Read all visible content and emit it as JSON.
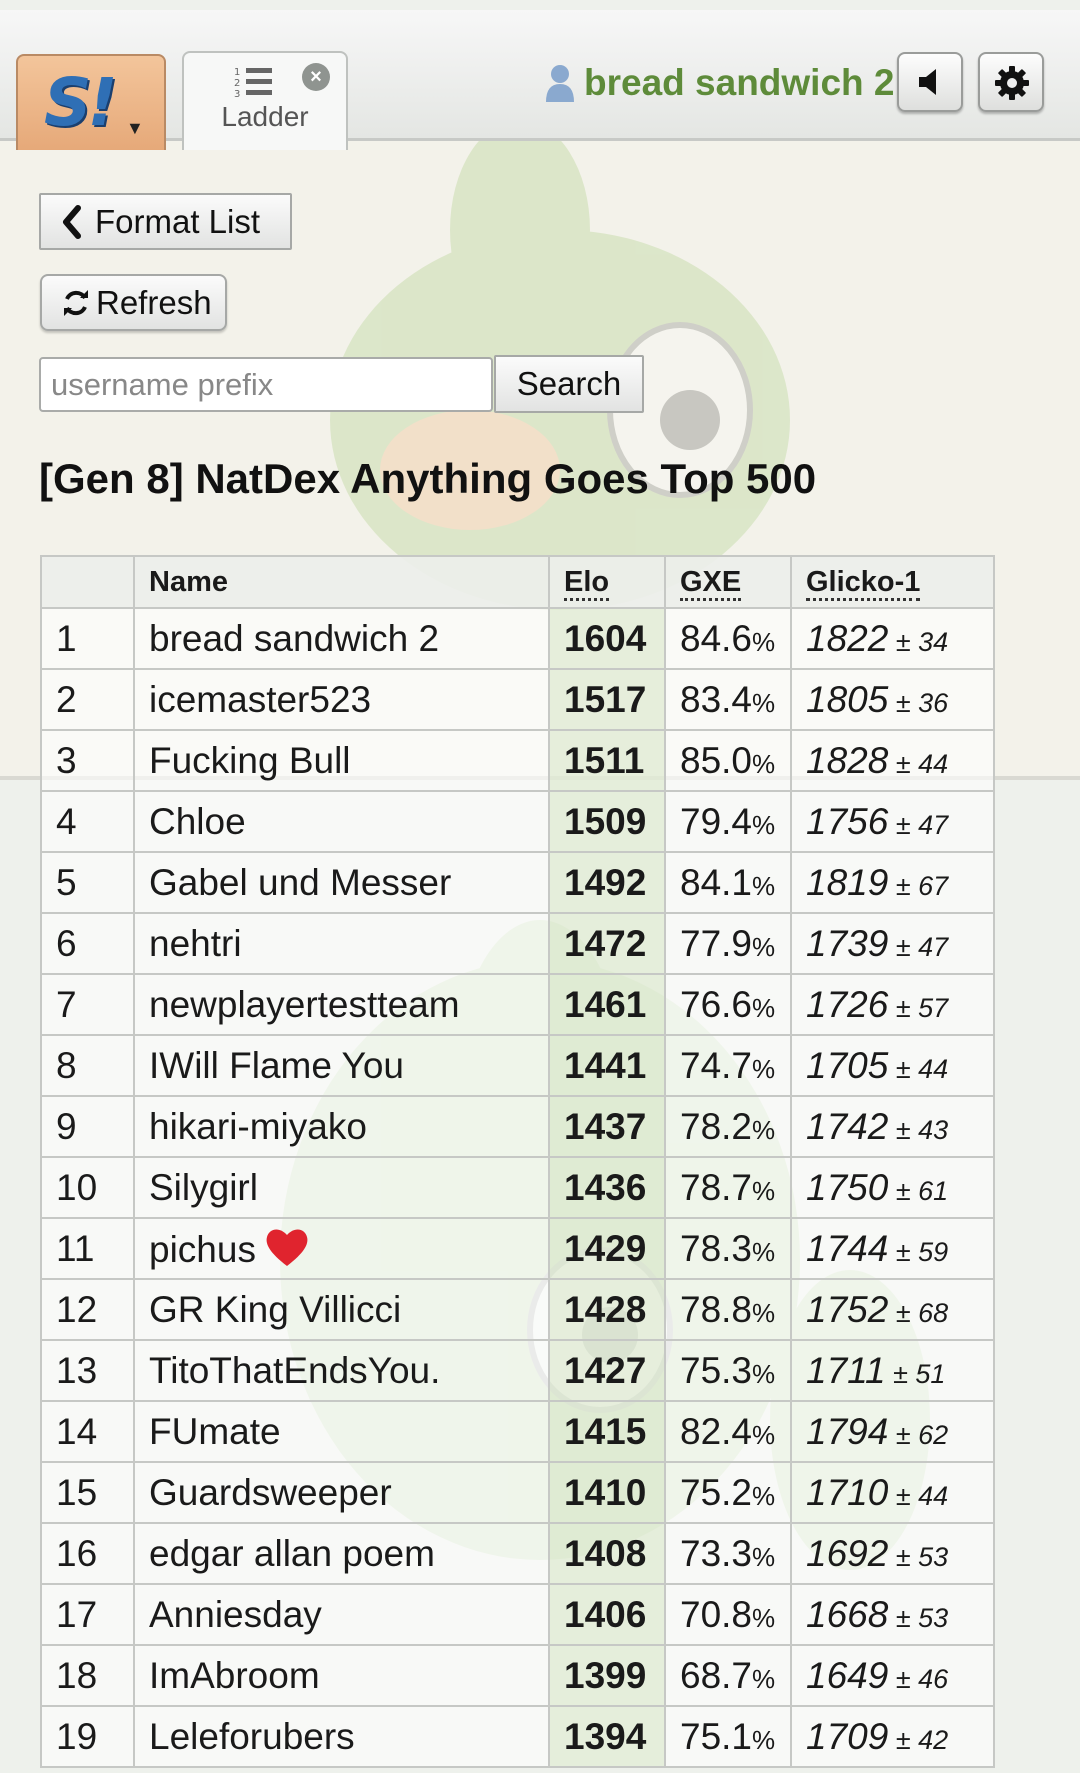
{
  "header": {
    "logo_text": "S!",
    "tab_label": "Ladder",
    "username": "bread sandwich 2"
  },
  "controls": {
    "format_list_label": "Format List",
    "refresh_label": "Refresh",
    "search_placeholder": "username prefix",
    "search_value": "",
    "search_button_label": "Search"
  },
  "ladder": {
    "title": "[Gen 8] NatDex Anything Goes Top 500",
    "columns": [
      "",
      "Name",
      "Elo",
      "GXE",
      "Glicko-1"
    ],
    "rows": [
      {
        "rank": "1",
        "name": "bread sandwich 2",
        "elo": "1604",
        "gxe": "84.6",
        "glicko": "1822",
        "dev": "34"
      },
      {
        "rank": "2",
        "name": "icemaster523",
        "elo": "1517",
        "gxe": "83.4",
        "glicko": "1805",
        "dev": "36"
      },
      {
        "rank": "3",
        "name": "Fucking Bull",
        "elo": "1511",
        "gxe": "85.0",
        "glicko": "1828",
        "dev": "44"
      },
      {
        "rank": "4",
        "name": "Chloe",
        "elo": "1509",
        "gxe": "79.4",
        "glicko": "1756",
        "dev": "47"
      },
      {
        "rank": "5",
        "name": "Gabel und Messer",
        "elo": "1492",
        "gxe": "84.1",
        "glicko": "1819",
        "dev": "67"
      },
      {
        "rank": "6",
        "name": "nehtri",
        "elo": "1472",
        "gxe": "77.9",
        "glicko": "1739",
        "dev": "47"
      },
      {
        "rank": "7",
        "name": "newplayertestteam",
        "elo": "1461",
        "gxe": "76.6",
        "glicko": "1726",
        "dev": "57"
      },
      {
        "rank": "8",
        "name": "IWill Flame You",
        "elo": "1441",
        "gxe": "74.7",
        "glicko": "1705",
        "dev": "44"
      },
      {
        "rank": "9",
        "name": "hikari-miyako",
        "elo": "1437",
        "gxe": "78.2",
        "glicko": "1742",
        "dev": "43"
      },
      {
        "rank": "10",
        "name": "Silygirl",
        "elo": "1436",
        "gxe": "78.7",
        "glicko": "1750",
        "dev": "61"
      },
      {
        "rank": "11",
        "name": "pichus",
        "elo": "1429",
        "gxe": "78.3",
        "glicko": "1744",
        "dev": "59",
        "emoji": "heart-icon"
      },
      {
        "rank": "12",
        "name": "GR King Villicci",
        "elo": "1428",
        "gxe": "78.8",
        "glicko": "1752",
        "dev": "68"
      },
      {
        "rank": "13",
        "name": "TitoThatEndsYou.",
        "elo": "1427",
        "gxe": "75.3",
        "glicko": "1711",
        "dev": "51"
      },
      {
        "rank": "14",
        "name": "FUmate",
        "elo": "1415",
        "gxe": "82.4",
        "glicko": "1794",
        "dev": "62"
      },
      {
        "rank": "15",
        "name": "Guardsweeper",
        "elo": "1410",
        "gxe": "75.2",
        "glicko": "1710",
        "dev": "44"
      },
      {
        "rank": "16",
        "name": "edgar allan poem",
        "elo": "1408",
        "gxe": "73.3",
        "glicko": "1692",
        "dev": "53"
      },
      {
        "rank": "17",
        "name": "Anniesday",
        "elo": "1406",
        "gxe": "70.8",
        "glicko": "1668",
        "dev": "53"
      },
      {
        "rank": "18",
        "name": "ImAbroom",
        "elo": "1399",
        "gxe": "68.7",
        "glicko": "1649",
        "dev": "46"
      },
      {
        "rank": "19",
        "name": "Leleforubers",
        "elo": "1394",
        "gxe": "75.1",
        "glicko": "1709",
        "dev": "42"
      }
    ]
  },
  "colors": {
    "username": "#5e8b3a",
    "logo_tab": "#e6a979",
    "logo_s": "#2f6fb5",
    "elo_column": "#e2ecd6"
  }
}
